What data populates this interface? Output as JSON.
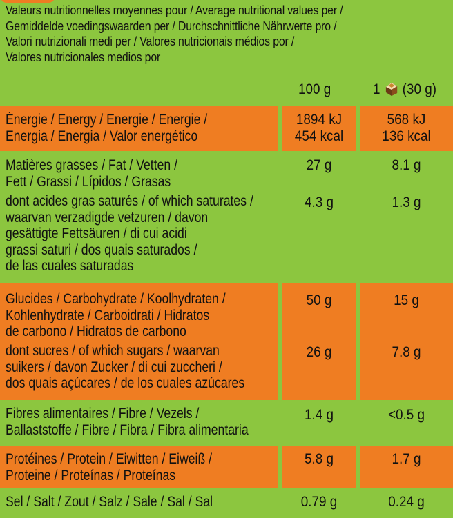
{
  "header": {
    "lines": [
      "Valeurs nutritionnelles moyennes pour / Average nutritional values per /",
      "Gemiddelde voedingswaarden per / Durchschnittliche Nährwerte pro /",
      "Valori nutrizionali medi per / Valores nutricionais médios por /",
      "Valores nutricionales medios por"
    ]
  },
  "columns": {
    "per100": "100 g",
    "perPortionPrefix": "1",
    "perPortionSuffix": "(30 g)",
    "portionIcon": "chocolate-piece-icon"
  },
  "colors": {
    "green": "#8cc63f",
    "orange": "#ef7d22"
  },
  "rows": {
    "energy": {
      "label": [
        "Énergie / Energy / Energie / Energie /",
        "Energia / Energia / Valor energético"
      ],
      "v100": [
        "1894 kJ",
        "454 kcal"
      ],
      "vPortion": [
        "568 kJ",
        "136 kcal"
      ]
    },
    "fat": {
      "label": [
        "Matières grasses / Fat / Vetten /",
        "Fett / Grassi / Lípidos / Grasas"
      ],
      "v100": "27 g",
      "vPortion": "8.1 g"
    },
    "saturates": {
      "label": [
        "dont acides gras saturés / of which saturates /",
        "waarvan verzadigde vetzuren / davon",
        "gesättigte Fettsäuren / di cui acidi",
        "grassi saturi / dos quais saturados /",
        "de las cuales saturadas"
      ],
      "v100": "4.3 g",
      "vPortion": "1.3 g"
    },
    "carbs": {
      "label": [
        "Glucides / Carbohydrate / Koolhydraten /",
        "Kohlenhydrate / Carboidrati / Hidratos",
        "de carbono / Hidratos de carbono"
      ],
      "v100": "50 g",
      "vPortion": "15 g"
    },
    "sugars": {
      "label": [
        "dont sucres / of which sugars / waarvan",
        "suikers / davon Zucker / di cui zuccheri /",
        "dos quais açúcares / de los cuales azúcares"
      ],
      "v100": "26 g",
      "vPortion": "7.8 g"
    },
    "fibre": {
      "label": [
        "Fibres alimentaires / Fibre / Vezels /",
        "Ballaststoffe / Fibre / Fibra / Fibra alimentaria"
      ],
      "v100": "1.4 g",
      "vPortion": "<0.5 g"
    },
    "protein": {
      "label": [
        "Protéines / Protein / Eiwitten / Eiweiß /",
        "Proteine / Proteínas / Proteínas"
      ],
      "v100": "5.8 g",
      "vPortion": "1.7 g"
    },
    "salt": {
      "label": [
        "Sel / Salt / Zout / Salz / Sale / Sal / Sal"
      ],
      "v100": "0.79 g",
      "vPortion": "0.24 g"
    }
  }
}
